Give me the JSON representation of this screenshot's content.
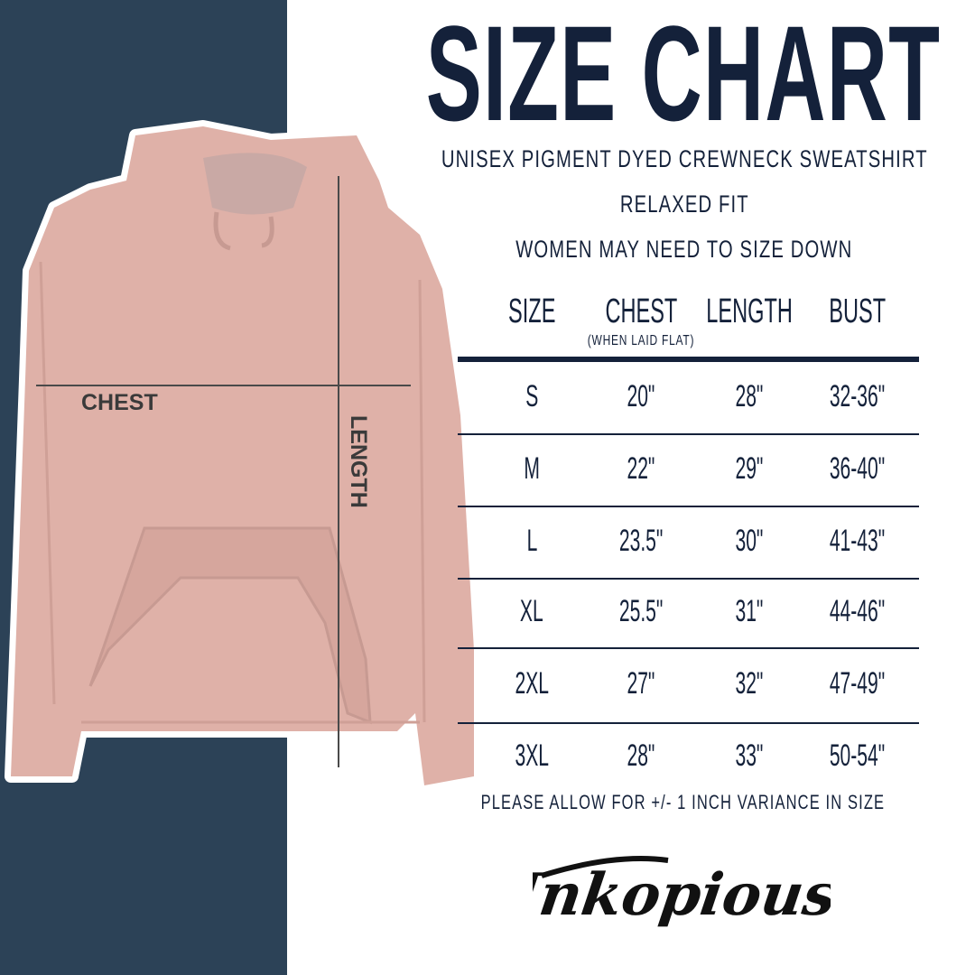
{
  "title": "SIZE CHART",
  "subtitle_lines": [
    "UNISEX PIGMENT DYED CREWNECK SWEATSHIRT",
    "RELAXED FIT",
    "WOMEN MAY NEED TO SIZE DOWN"
  ],
  "garment_labels": {
    "chest": "CHEST",
    "length": "LENGTH"
  },
  "table": {
    "headers": [
      "SIZE",
      "CHEST",
      "LENGTH",
      "BUST"
    ],
    "chest_note": "(WHEN LAID FLAT)",
    "rows": [
      [
        "S",
        "20\"",
        "28\"",
        "32-36\""
      ],
      [
        "M",
        "22\"",
        "29\"",
        "36-40\""
      ],
      [
        "L",
        "23.5\"",
        "30\"",
        "41-43\""
      ],
      [
        "XL",
        "25.5\"",
        "31\"",
        "44-46\""
      ],
      [
        "2XL",
        "27\"",
        "32\"",
        "47-49\""
      ],
      [
        "3XL",
        "28\"",
        "33\"",
        "50-54\""
      ]
    ]
  },
  "footnote": "PLEASE ALLOW FOR +/- 1 INCH VARIANCE IN SIZE",
  "brand": "Inkopious",
  "colors": {
    "panel": "#2c4257",
    "text": "#14213a",
    "garment": "#dfb1a8"
  }
}
